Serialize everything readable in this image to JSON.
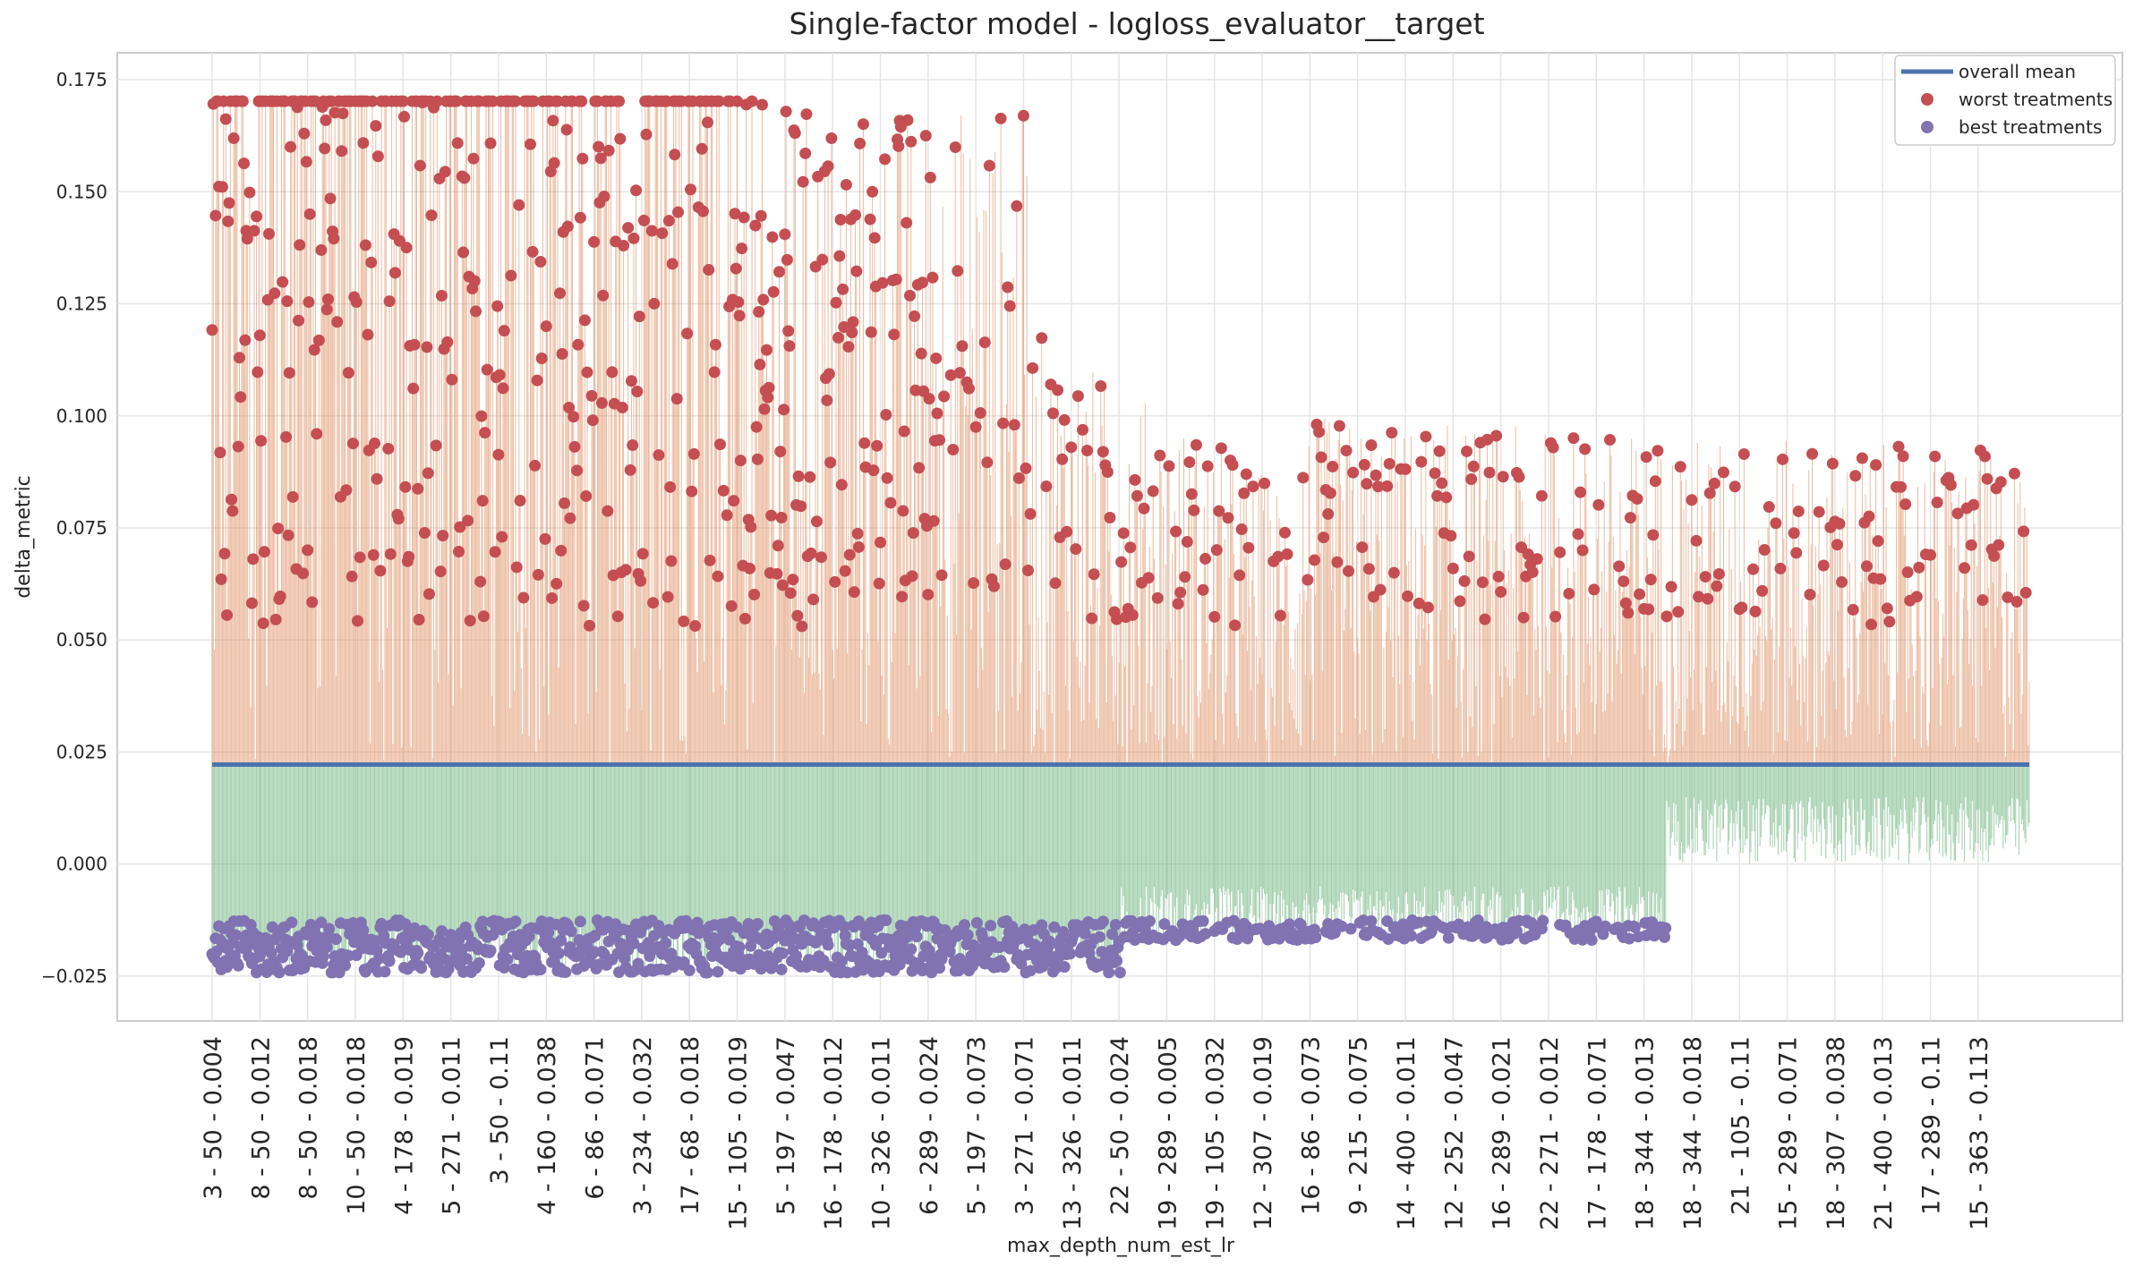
{
  "chart_data": {
    "type": "scatter",
    "title": "Single-factor model - logloss_evaluator__target",
    "xlabel": "max_depth_num_est_lr",
    "ylabel": "delta_metric",
    "ylim": [
      -0.035,
      0.181
    ],
    "yticks": [
      -0.025,
      0.0,
      0.025,
      0.05,
      0.075,
      0.1,
      0.125,
      0.15,
      0.175
    ],
    "ytick_labels": [
      "−0.025",
      "0.000",
      "0.025",
      "0.050",
      "0.075",
      "0.100",
      "0.125",
      "0.150",
      "0.175"
    ],
    "xtick_labels": [
      "3 - 50 - 0.004",
      "8 - 50 - 0.012",
      "8 - 50 - 0.018",
      "10 - 50 - 0.018",
      "4 - 178 - 0.019",
      "5 - 271 - 0.011",
      "3 - 50 - 0.11",
      "4 - 160 - 0.038",
      "6 - 86 - 0.071",
      "3 - 234 - 0.032",
      "17 - 68 - 0.018",
      "15 - 105 - 0.019",
      "5 - 197 - 0.047",
      "16 - 178 - 0.012",
      "10 - 326 - 0.011",
      "6 - 289 - 0.024",
      "5 - 197 - 0.073",
      "3 - 271 - 0.071",
      "13 - 326 - 0.011",
      "22 - 50 - 0.024",
      "19 - 289 - 0.005",
      "19 - 105 - 0.032",
      "12 - 307 - 0.019",
      "16 - 86 - 0.073",
      "9 - 215 - 0.075",
      "14 - 400 - 0.011",
      "12 - 252 - 0.047",
      "16 - 289 - 0.021",
      "22 - 271 - 0.012",
      "17 - 178 - 0.071",
      "18 - 344 - 0.013",
      "18 - 344 - 0.018",
      "21 - 105 - 0.11",
      "15 - 289 - 0.071",
      "18 - 307 - 0.038",
      "21 - 400 - 0.013",
      "17 - 289 - 0.11",
      "15 - 363 - 0.113"
    ],
    "overall_mean": 0.0222,
    "n_treatments": 1600,
    "tick_every": 42,
    "worst_band": [
      0.053,
      0.1702
    ],
    "best_band": [
      -0.0242,
      -0.0125
    ],
    "legend": {
      "position": "top-right",
      "entries": [
        {
          "label": "overall mean",
          "color": "#4c72b0",
          "kind": "line"
        },
        {
          "label": "worst treatments",
          "color": "#c44e52",
          "kind": "marker"
        },
        {
          "label": "best treatments",
          "color": "#8172b2",
          "kind": "marker"
        }
      ]
    },
    "colors": {
      "above_mean_stem": "#dd8452",
      "below_mean_stem": "#55a868",
      "grid": "#e5e5e5",
      "frame": "#cccccc"
    },
    "grid": true
  }
}
